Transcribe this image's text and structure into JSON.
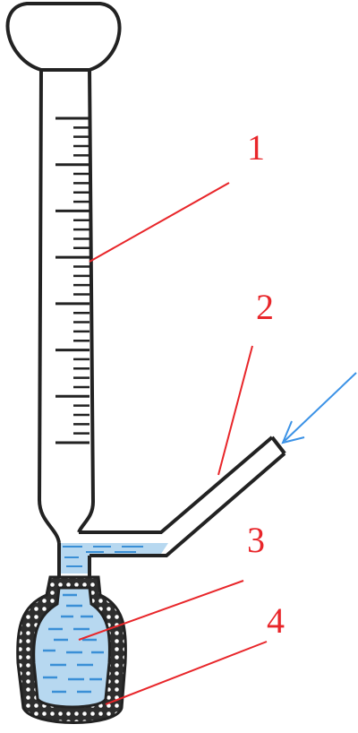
{
  "labels": [
    {
      "id": "1",
      "text": "1"
    },
    {
      "id": "2",
      "text": "2"
    },
    {
      "id": "3",
      "text": "3"
    },
    {
      "id": "4",
      "text": "4"
    }
  ],
  "scale": {
    "major_ticks": 8,
    "minor_per_interval": 4
  },
  "colors": {
    "outline": "#222222",
    "glass": "#ffffff",
    "liquid": "#b7d8f0",
    "liquid_dash": "#3a8fd6",
    "label": "#e8262a",
    "arrow": "#3b92e6",
    "packing": "#3a3a3a"
  }
}
